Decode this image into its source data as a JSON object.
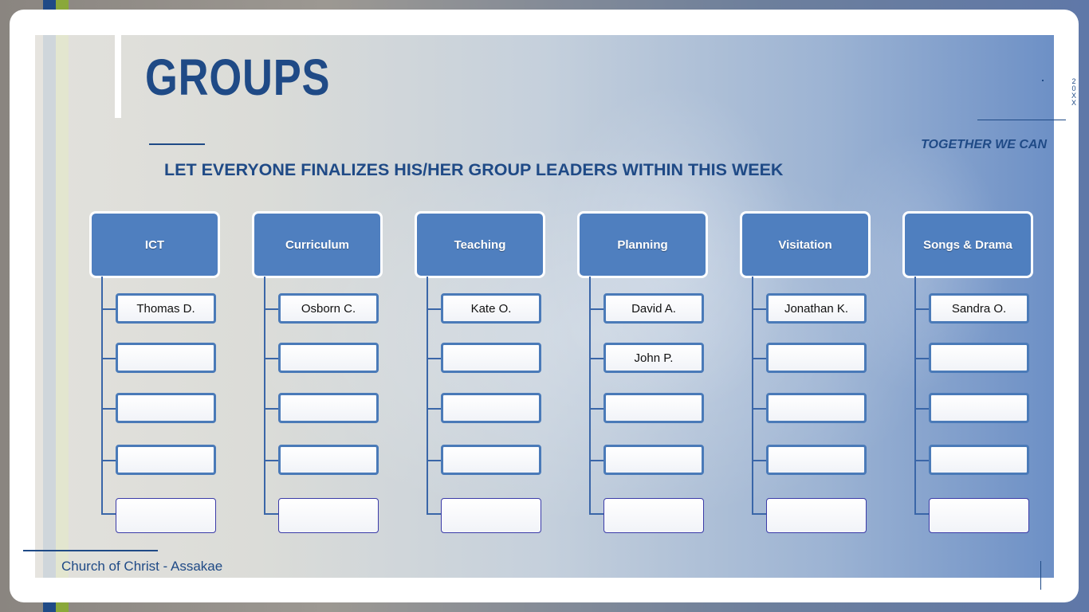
{
  "slide": {
    "title": "GROUPS",
    "subtitle": "LET EVERYONE FINALIZES HIS/HER GROUP LEADERS WITHIN THIS WEEK",
    "tagline": "TOGETHER WE CAN",
    "year": "20XX",
    "footer": "Church of Christ - Assakae"
  },
  "colors": {
    "primary": "#1f4a86",
    "header_fill": "#4f7fbf",
    "box_border": "#4a7ab8"
  },
  "groups": [
    {
      "name": "ICT",
      "members": [
        "Thomas D.",
        "",
        "",
        "",
        ""
      ]
    },
    {
      "name": "Curriculum",
      "members": [
        "Osborn C.",
        "",
        "",
        "",
        ""
      ]
    },
    {
      "name": "Teaching",
      "members": [
        "Kate O.",
        "",
        "",
        "",
        ""
      ]
    },
    {
      "name": "Planning",
      "members": [
        "David A.",
        "John P.",
        "",
        "",
        ""
      ]
    },
    {
      "name": "Visitation",
      "members": [
        "Jonathan K.",
        "",
        "",
        "",
        ""
      ]
    },
    {
      "name": "Songs & Drama",
      "members": [
        "Sandra O.",
        "",
        "",
        "",
        ""
      ]
    }
  ]
}
